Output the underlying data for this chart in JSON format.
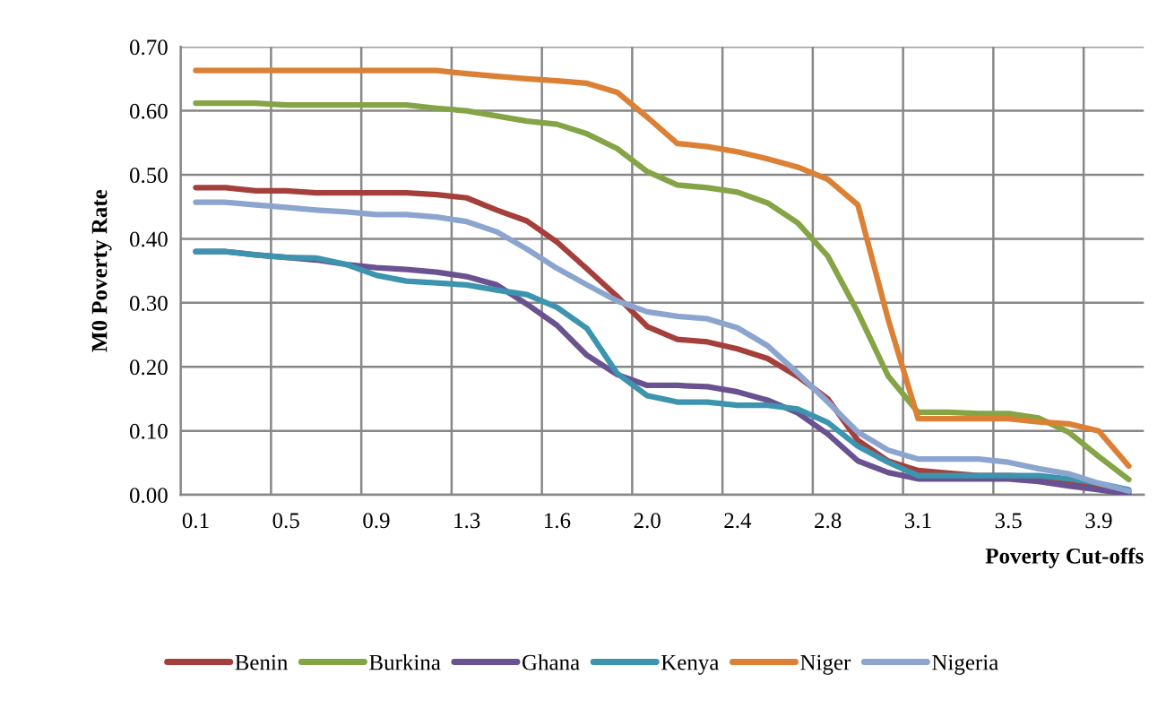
{
  "chart_data": {
    "type": "line",
    "xlabel": "Poverty Cut-offs",
    "ylabel": "M0 Poverty Rate",
    "categories": [
      "0.1",
      null,
      null,
      "0.5",
      null,
      null,
      "0.9",
      null,
      null,
      "1.3",
      null,
      null,
      "1.6",
      null,
      null,
      "2.0",
      null,
      null,
      "2.4",
      null,
      null,
      "2.8",
      null,
      null,
      "3.1",
      null,
      null,
      "3.5",
      null,
      null,
      "3.9",
      null
    ],
    "ylim": [
      0,
      0.7
    ],
    "yticks": [
      {
        "value": 0,
        "label": "0.00"
      },
      {
        "value": 0.1,
        "label": "0.10"
      },
      {
        "value": 0.2,
        "label": "0.20"
      },
      {
        "value": 0.3,
        "label": "0.30"
      },
      {
        "value": 0.4,
        "label": "0.40"
      },
      {
        "value": 0.5,
        "label": "0.50"
      },
      {
        "value": 0.6,
        "label": "0.60"
      },
      {
        "value": 0.7,
        "label": "0.70"
      }
    ],
    "grid": true,
    "legend": "bottom",
    "marker": "none",
    "line_style": "solid",
    "series": [
      {
        "name": "Benin",
        "color": "#a53f3c",
        "values": [
          0.48,
          0.48,
          0.475,
          0.475,
          0.472,
          0.472,
          0.472,
          0.472,
          0.469,
          0.464,
          0.445,
          0.428,
          0.395,
          0.353,
          0.31,
          0.263,
          0.243,
          0.239,
          0.228,
          0.213,
          0.185,
          0.15,
          0.085,
          0.053,
          0.038,
          0.034,
          0.03,
          0.03,
          0.028,
          0.022,
          0.015,
          0.005
        ]
      },
      {
        "name": "Burkina",
        "color": "#84a446",
        "values": [
          0.612,
          0.612,
          0.612,
          0.609,
          0.609,
          0.609,
          0.609,
          0.609,
          0.604,
          0.6,
          0.592,
          0.584,
          0.579,
          0.564,
          0.541,
          0.505,
          0.484,
          0.48,
          0.473,
          0.456,
          0.425,
          0.373,
          0.285,
          0.186,
          0.129,
          0.129,
          0.127,
          0.127,
          0.12,
          0.098,
          0.06,
          0.024
        ]
      },
      {
        "name": "Ghana",
        "color": "#6a518f",
        "values": [
          0.38,
          0.38,
          0.375,
          0.371,
          0.367,
          0.36,
          0.355,
          0.352,
          0.348,
          0.341,
          0.328,
          0.298,
          0.265,
          0.218,
          0.188,
          0.171,
          0.171,
          0.169,
          0.161,
          0.148,
          0.128,
          0.095,
          0.053,
          0.035,
          0.025,
          0.025,
          0.025,
          0.025,
          0.021,
          0.014,
          0.008,
          0.001
        ]
      },
      {
        "name": "Kenya",
        "color": "#3c94ae",
        "values": [
          0.38,
          0.38,
          0.375,
          0.371,
          0.37,
          0.36,
          0.343,
          0.334,
          0.331,
          0.328,
          0.32,
          0.313,
          0.293,
          0.26,
          0.19,
          0.155,
          0.145,
          0.145,
          0.14,
          0.14,
          0.134,
          0.113,
          0.076,
          0.051,
          0.03,
          0.03,
          0.03,
          0.03,
          0.03,
          0.025,
          0.018,
          0.008
        ]
      },
      {
        "name": "Niger",
        "color": "#db8034",
        "values": [
          0.663,
          0.663,
          0.663,
          0.663,
          0.663,
          0.663,
          0.663,
          0.663,
          0.663,
          0.658,
          0.654,
          0.65,
          0.647,
          0.643,
          0.629,
          0.59,
          0.549,
          0.544,
          0.536,
          0.525,
          0.512,
          0.493,
          0.453,
          0.275,
          0.119,
          0.119,
          0.119,
          0.119,
          0.114,
          0.111,
          0.1,
          0.045
        ]
      },
      {
        "name": "Nigeria",
        "color": "#8ca5cf",
        "values": [
          0.457,
          0.457,
          0.453,
          0.449,
          0.445,
          0.442,
          0.438,
          0.438,
          0.434,
          0.427,
          0.411,
          0.384,
          0.354,
          0.328,
          0.303,
          0.286,
          0.279,
          0.275,
          0.261,
          0.233,
          0.19,
          0.145,
          0.098,
          0.07,
          0.056,
          0.056,
          0.056,
          0.051,
          0.041,
          0.033,
          0.018,
          0.006
        ]
      }
    ]
  }
}
